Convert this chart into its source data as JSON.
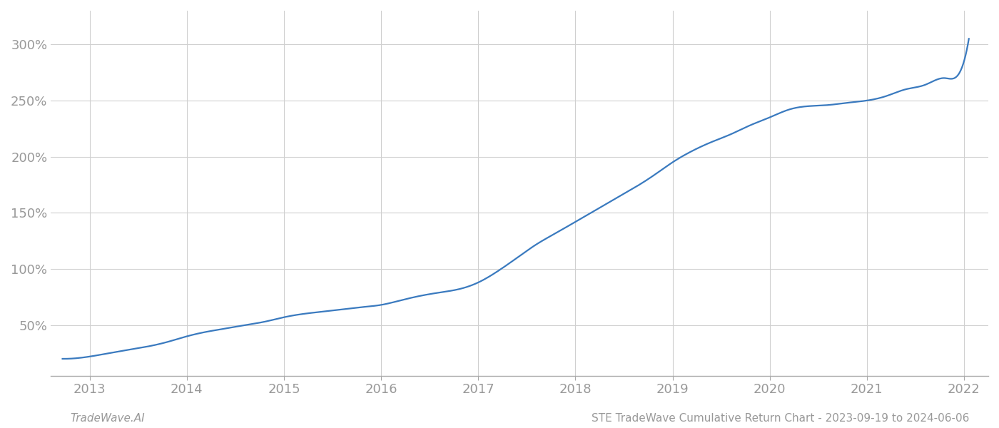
{
  "x_years": [
    2012.72,
    2013.0,
    2013.2,
    2013.4,
    2013.6,
    2013.8,
    2014.0,
    2014.2,
    2014.4,
    2014.6,
    2014.8,
    2015.0,
    2015.2,
    2015.4,
    2015.6,
    2015.8,
    2016.0,
    2016.2,
    2016.4,
    2016.6,
    2016.8,
    2017.0,
    2017.2,
    2017.4,
    2017.6,
    2017.8,
    2018.0,
    2018.2,
    2018.4,
    2018.6,
    2018.8,
    2019.0,
    2019.2,
    2019.4,
    2019.6,
    2019.8,
    2020.0,
    2020.2,
    2020.4,
    2020.6,
    2020.8,
    2021.0,
    2021.2,
    2021.4,
    2021.6,
    2021.8,
    2022.0,
    2022.05
  ],
  "y_values": [
    20,
    22,
    25,
    28,
    31,
    35,
    40,
    44,
    47,
    50,
    53,
    57,
    60,
    62,
    64,
    66,
    68,
    72,
    76,
    79,
    82,
    88,
    98,
    110,
    122,
    132,
    142,
    152,
    162,
    172,
    183,
    195,
    205,
    213,
    220,
    228,
    235,
    242,
    245,
    246,
    248,
    250,
    254,
    260,
    264,
    270,
    285,
    305
  ],
  "line_color": "#3a7abf",
  "line_width": 1.6,
  "background_color": "#ffffff",
  "grid_color": "#d0d0d0",
  "x_ticks": [
    2013,
    2014,
    2015,
    2016,
    2017,
    2018,
    2019,
    2020,
    2021,
    2022
  ],
  "y_ticks": [
    50,
    100,
    150,
    200,
    250,
    300
  ],
  "xlim": [
    2012.6,
    2022.25
  ],
  "ylim": [
    5,
    330
  ],
  "footer_left": "TradeWave.AI",
  "footer_right": "STE TradeWave Cumulative Return Chart - 2023-09-19 to 2024-06-06",
  "footer_color": "#999999",
  "footer_fontsize": 11,
  "tick_fontsize": 13,
  "tick_color": "#999999",
  "spine_color": "#aaaaaa"
}
